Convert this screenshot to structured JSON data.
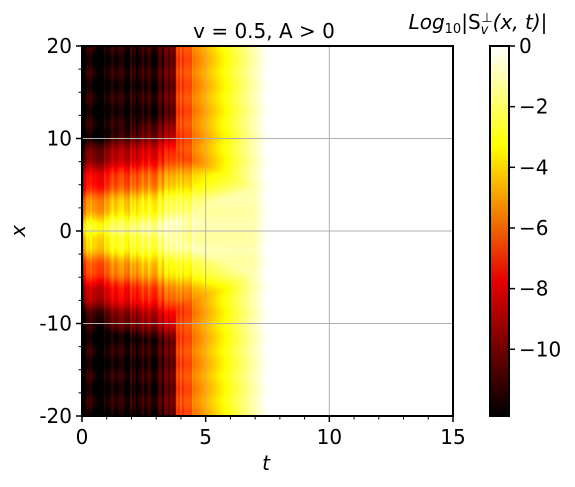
{
  "chart_data": {
    "type": "heatmap",
    "title": "v = 0.5, A > 0",
    "xlabel": "t",
    "ylabel": "x",
    "xlim": [
      0,
      15
    ],
    "ylim": [
      -20,
      20
    ],
    "x_ticks": [
      0,
      5,
      10,
      15
    ],
    "x_tick_labels": [
      "0",
      "5",
      "10",
      "15"
    ],
    "y_ticks": [
      20,
      10,
      0,
      -10,
      -20
    ],
    "y_tick_labels": [
      "20",
      "10",
      "0",
      "-10",
      "-20"
    ],
    "grid": true,
    "colorbar": {
      "label_prefix": "Log",
      "label_sub": "10",
      "label_body": "|S",
      "label_body_sub": "v",
      "label_body_sup": "⊥",
      "label_tail": "(x, t)|",
      "range": [
        -12.2,
        0
      ],
      "ticks": [
        0,
        -2,
        -4,
        -6,
        -8,
        -10
      ],
      "tick_labels": [
        "0",
        "−2",
        "−4",
        "−6",
        "−8",
        "−10"
      ],
      "colormap": "hot"
    },
    "field_description_values": {
      "front_speed": 0.5,
      "front_origin": [
        0,
        0
      ],
      "saturation_time": 8.5,
      "min_value": -12
    }
  }
}
